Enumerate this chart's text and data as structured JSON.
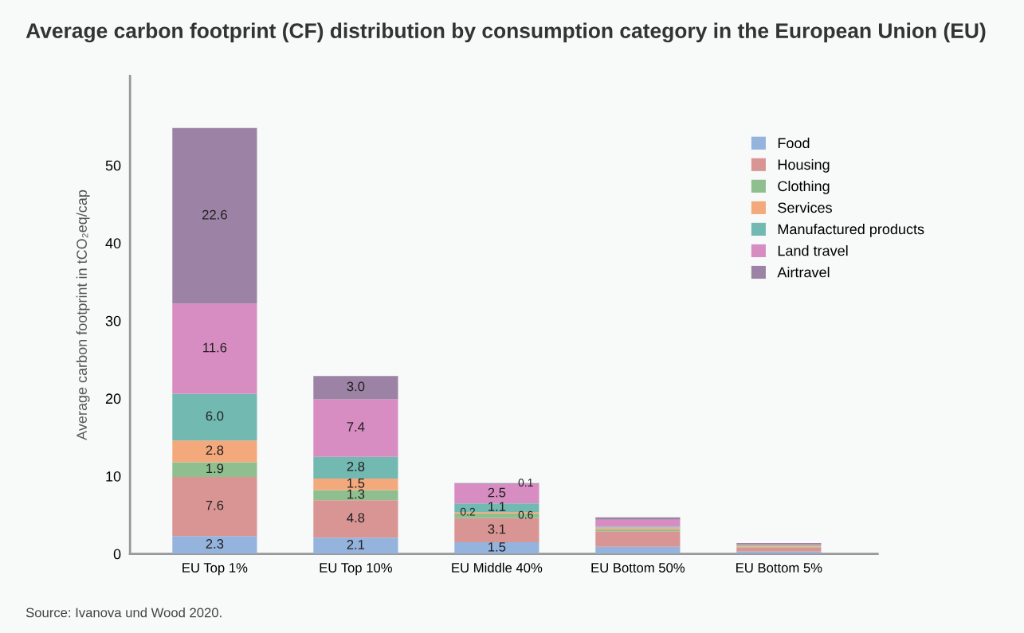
{
  "chart_data": {
    "type": "bar",
    "stacked": true,
    "title": "Average carbon footprint (CF) distribution by consumption category in the European Union (EU)",
    "ylabel": "Average carbon footprint in tCO₂eq/cap",
    "categories": [
      "EU Top 1%",
      "EU Top 10%",
      "EU Middle 40%",
      "EU Bottom 50%",
      "EU Bottom 5%"
    ],
    "series": [
      {
        "name": "Food",
        "color": "#94b4dd",
        "values": [
          2.3,
          2.1,
          1.5,
          0.9,
          0.3
        ],
        "value_labels": [
          "2.3",
          "2.1",
          "1.5",
          null,
          null
        ]
      },
      {
        "name": "Housing",
        "color": "#d99594",
        "values": [
          7.6,
          4.8,
          3.1,
          2.0,
          0.5
        ],
        "value_labels": [
          "7.6",
          "4.8",
          "3.1",
          null,
          null
        ]
      },
      {
        "name": "Clothing",
        "color": "#8fbf8f",
        "values": [
          1.9,
          1.3,
          0.6,
          0.3,
          0.1
        ],
        "value_labels": [
          "1.9",
          "1.3",
          "0.6",
          null,
          null
        ]
      },
      {
        "name": "Services",
        "color": "#f4a97d",
        "values": [
          2.8,
          1.5,
          0.2,
          0.2,
          0.2
        ],
        "value_labels": [
          "2.8",
          "1.5",
          "0.2",
          null,
          null
        ]
      },
      {
        "name": "Manufactured products",
        "color": "#72b9b2",
        "values": [
          6.0,
          2.8,
          1.1,
          0.1,
          0.1
        ],
        "value_labels": [
          "6.0",
          "2.8",
          "1.1",
          null,
          null
        ]
      },
      {
        "name": "Land travel",
        "color": "#d78cc2",
        "values": [
          11.6,
          7.4,
          2.5,
          0.9,
          0.1
        ],
        "value_labels": [
          "11.6",
          "7.4",
          "2.5",
          null,
          null
        ]
      },
      {
        "name": "Airtravel",
        "color": "#9c82a4",
        "values": [
          22.6,
          3.0,
          0.1,
          0.3,
          0.1
        ],
        "value_labels": [
          "22.6",
          "3.0",
          "0.1",
          null,
          null
        ]
      }
    ],
    "ylim": [
      0,
      61.5
    ],
    "yticks": [
      0,
      10,
      20,
      30,
      40,
      50
    ],
    "grid": false,
    "legend": "top right",
    "annotations": [
      "Source: Ivanova und Wood 2020."
    ]
  }
}
